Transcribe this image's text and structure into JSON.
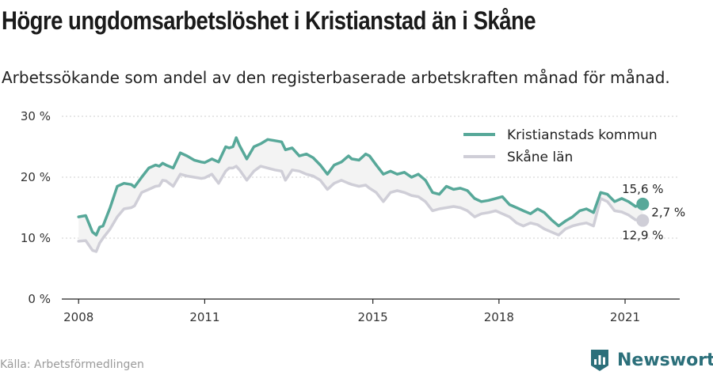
{
  "title": "Högre ungdomsarbetslöshet i Kristianstad än i Skåne",
  "subtitle": "Arbetssökande som andel av den registerbaserade arbetskraften månad för månad.",
  "source": "Källa: Arbetsförmedlingen",
  "brand": "Newsworthy",
  "colors": {
    "kommun": "#57a899",
    "lan": "#cfced7",
    "band": "#f3f3f3",
    "grid": "#cfcfcf",
    "brand": "#2b6f7a"
  },
  "chart_data": {
    "type": "line",
    "x_unit": "year (decimal, monthly data)",
    "ylim": [
      0,
      30
    ],
    "xlim": [
      2007.6,
      2022.3
    ],
    "yticks": [
      0,
      10,
      20,
      30
    ],
    "ytick_labels": [
      "0 %",
      "10 %",
      "20 %",
      "30 %"
    ],
    "xticks": [
      2008,
      2011,
      2015,
      2018,
      2021
    ],
    "xtick_labels": [
      "2008",
      "2011",
      "2015",
      "2018",
      "2021"
    ],
    "legend_position": "top-right",
    "grid": true,
    "series": [
      {
        "name": "Kristianstads kommun",
        "x": [
          2008.0,
          2008.17,
          2008.33,
          2008.42,
          2008.5,
          2008.58,
          2008.75,
          2008.92,
          2009.08,
          2009.25,
          2009.33,
          2009.5,
          2009.67,
          2009.83,
          2009.92,
          2010.0,
          2010.08,
          2010.25,
          2010.42,
          2010.58,
          2010.75,
          2010.92,
          2011.0,
          2011.17,
          2011.33,
          2011.5,
          2011.58,
          2011.67,
          2011.75,
          2011.83,
          2012.0,
          2012.17,
          2012.33,
          2012.5,
          2012.67,
          2012.83,
          2012.92,
          2013.08,
          2013.25,
          2013.42,
          2013.58,
          2013.75,
          2013.92,
          2014.08,
          2014.25,
          2014.42,
          2014.5,
          2014.67,
          2014.83,
          2014.92,
          2015.08,
          2015.25,
          2015.42,
          2015.58,
          2015.75,
          2015.92,
          2016.08,
          2016.25,
          2016.42,
          2016.58,
          2016.75,
          2016.92,
          2017.08,
          2017.25,
          2017.42,
          2017.58,
          2017.75,
          2017.92,
          2018.08,
          2018.25,
          2018.42,
          2018.58,
          2018.75,
          2018.92,
          2019.08,
          2019.25,
          2019.42,
          2019.58,
          2019.75,
          2019.92,
          2020.08,
          2020.25,
          2020.42,
          2020.58,
          2020.75,
          2020.92,
          2021.08,
          2021.25,
          2021.42
        ],
        "values": [
          13.5,
          13.7,
          11.0,
          10.5,
          11.8,
          12.0,
          15.0,
          18.5,
          19.0,
          18.8,
          18.4,
          20.0,
          21.5,
          22.0,
          21.8,
          22.3,
          22.0,
          21.5,
          24.0,
          23.5,
          22.8,
          22.5,
          22.4,
          23.0,
          22.5,
          25.0,
          24.8,
          25.0,
          26.5,
          25.2,
          23.0,
          25.0,
          25.5,
          26.2,
          26.0,
          25.8,
          24.5,
          24.8,
          23.5,
          23.8,
          23.2,
          22.0,
          20.5,
          22.0,
          22.5,
          23.5,
          23.0,
          22.8,
          23.8,
          23.5,
          22.0,
          20.5,
          21.0,
          20.5,
          20.8,
          20.0,
          20.5,
          19.5,
          17.5,
          17.2,
          18.5,
          18.0,
          18.2,
          17.8,
          16.5,
          16.0,
          16.2,
          16.5,
          16.8,
          15.5,
          15.0,
          14.5,
          14.0,
          14.8,
          14.2,
          13.0,
          12.0,
          12.8,
          13.5,
          14.5,
          14.8,
          14.2,
          17.5,
          17.2,
          16.0,
          16.5,
          16.0,
          15.2,
          15.6
        ]
      },
      {
        "name": "Skåne län",
        "x": [
          2008.0,
          2008.17,
          2008.33,
          2008.42,
          2008.5,
          2008.58,
          2008.75,
          2008.92,
          2009.08,
          2009.25,
          2009.33,
          2009.5,
          2009.67,
          2009.83,
          2009.92,
          2010.0,
          2010.08,
          2010.25,
          2010.42,
          2010.58,
          2010.75,
          2010.92,
          2011.0,
          2011.17,
          2011.33,
          2011.5,
          2011.58,
          2011.67,
          2011.75,
          2011.83,
          2012.0,
          2012.17,
          2012.33,
          2012.5,
          2012.67,
          2012.83,
          2012.92,
          2013.08,
          2013.25,
          2013.42,
          2013.58,
          2013.75,
          2013.92,
          2014.08,
          2014.25,
          2014.42,
          2014.5,
          2014.67,
          2014.83,
          2014.92,
          2015.08,
          2015.25,
          2015.42,
          2015.58,
          2015.75,
          2015.92,
          2016.08,
          2016.25,
          2016.42,
          2016.58,
          2016.75,
          2016.92,
          2017.08,
          2017.25,
          2017.42,
          2017.58,
          2017.75,
          2017.92,
          2018.08,
          2018.25,
          2018.42,
          2018.58,
          2018.75,
          2018.92,
          2019.08,
          2019.25,
          2019.42,
          2019.58,
          2019.75,
          2019.92,
          2020.08,
          2020.25,
          2020.42,
          2020.58,
          2020.75,
          2020.92,
          2021.08,
          2021.25,
          2021.42
        ],
        "values": [
          9.5,
          9.6,
          8.0,
          7.8,
          9.2,
          10.0,
          11.5,
          13.5,
          14.8,
          15.0,
          15.3,
          17.5,
          18.0,
          18.5,
          18.6,
          19.5,
          19.4,
          18.5,
          20.5,
          20.2,
          20.0,
          19.8,
          19.9,
          20.5,
          19.0,
          21.0,
          21.5,
          21.5,
          21.8,
          21.2,
          19.5,
          21.0,
          21.8,
          21.5,
          21.2,
          21.0,
          19.5,
          21.2,
          21.0,
          20.5,
          20.2,
          19.5,
          18.0,
          19.0,
          19.5,
          19.0,
          18.8,
          18.5,
          18.7,
          18.2,
          17.5,
          16.0,
          17.5,
          17.8,
          17.5,
          17.0,
          16.8,
          16.0,
          14.5,
          14.8,
          15.0,
          15.2,
          15.0,
          14.5,
          13.5,
          14.0,
          14.2,
          14.5,
          14.0,
          13.5,
          12.5,
          12.0,
          12.5,
          12.2,
          11.5,
          11.0,
          10.5,
          11.5,
          12.0,
          12.3,
          12.5,
          12.0,
          16.5,
          16.0,
          14.5,
          14.3,
          13.8,
          13.0,
          12.9
        ]
      }
    ],
    "annotations": {
      "last_kommun": "15,6 %",
      "last_lan": "12,9 %",
      "diff": "2,7 %"
    }
  }
}
